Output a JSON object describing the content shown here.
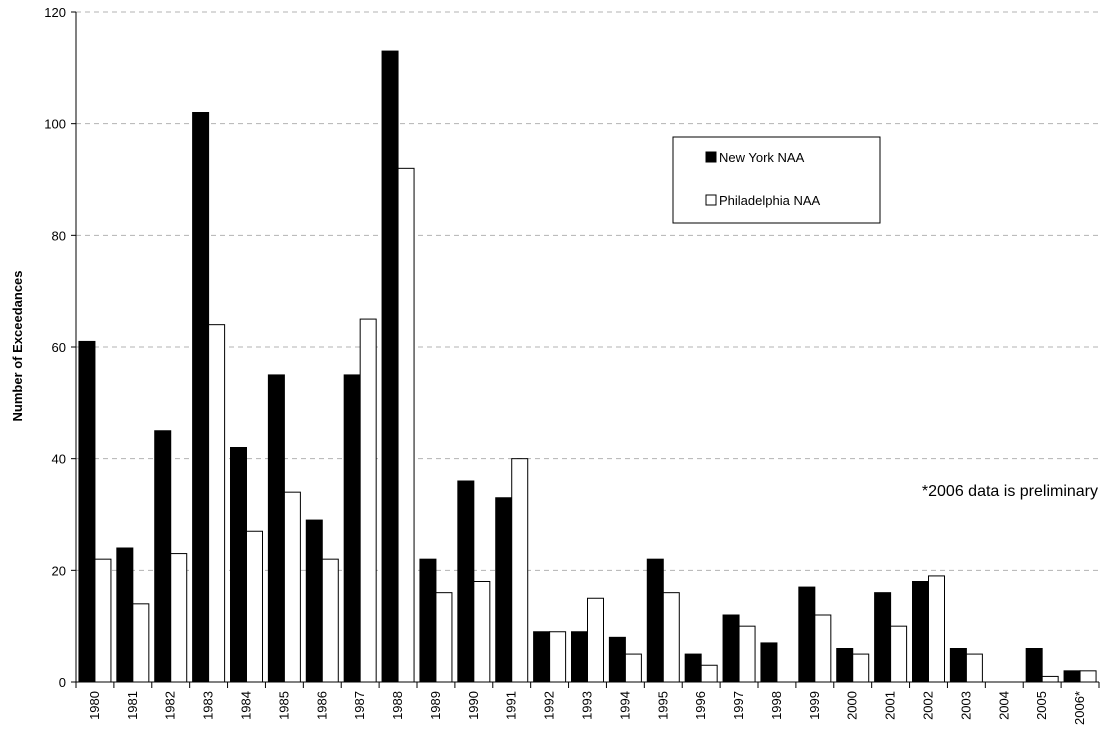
{
  "chart_data": {
    "type": "bar",
    "title": "",
    "xlabel": "",
    "ylabel": "Number of Exceedances",
    "ylim": [
      0,
      120
    ],
    "yticks": [
      0,
      20,
      40,
      60,
      80,
      100,
      120
    ],
    "grid": "horizontal dashed",
    "legend_position": "top-right",
    "categories": [
      "1980",
      "1981",
      "1982",
      "1983",
      "1984",
      "1985",
      "1986",
      "1987",
      "1988",
      "1989",
      "1990",
      "1991",
      "1992",
      "1993",
      "1994",
      "1995",
      "1996",
      "1997",
      "1998",
      "1999",
      "2000",
      "2001",
      "2002",
      "2003",
      "2004",
      "2005",
      "2006*"
    ],
    "series": [
      {
        "name": "New York NAA",
        "color": "#000000",
        "values": [
          61,
          24,
          45,
          102,
          42,
          55,
          29,
          55,
          113,
          22,
          36,
          33,
          9,
          9,
          8,
          22,
          5,
          12,
          7,
          17,
          6,
          16,
          18,
          6,
          0,
          6,
          2
        ]
      },
      {
        "name": "Philadelphia NAA",
        "color": "#ffffff",
        "values": [
          22,
          14,
          23,
          64,
          27,
          34,
          22,
          65,
          92,
          16,
          18,
          40,
          9,
          15,
          5,
          16,
          3,
          10,
          0,
          12,
          5,
          10,
          19,
          5,
          0,
          1,
          2
        ]
      }
    ],
    "annotation": "*2006 data is preliminary"
  }
}
